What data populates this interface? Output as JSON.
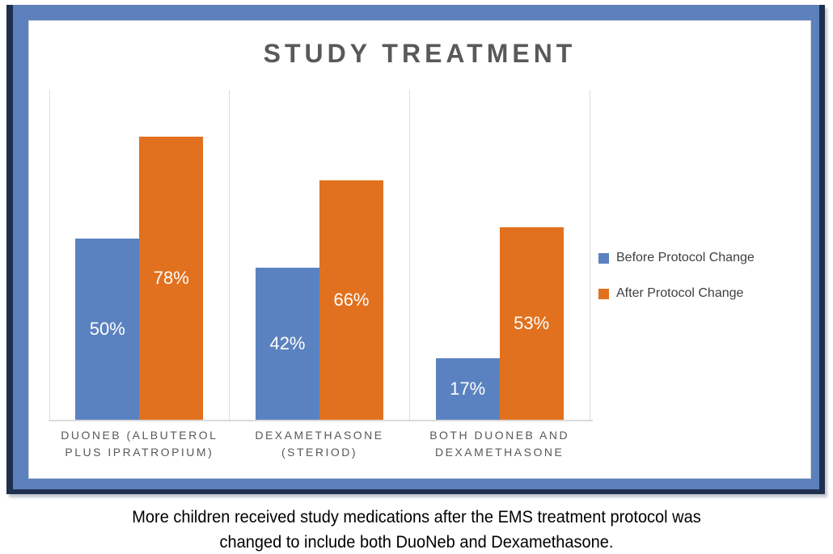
{
  "chart_data": {
    "type": "bar",
    "title": "STUDY TREATMENT",
    "categories": [
      "DUONEB (ALBUTEROL PLUS IPRATROPIUM)",
      "DEXAMETHASONE (STERIOD)",
      "BOTH DUONEB AND DEXAMETHASONE"
    ],
    "categories_lines": [
      [
        "DUONEB (ALBUTEROL",
        "PLUS IPRATROPIUM)"
      ],
      [
        "DEXAMETHASONE",
        "(STERIOD)"
      ],
      [
        "BOTH DUONEB AND",
        "DEXAMETHASONE"
      ]
    ],
    "series": [
      {
        "name": "Before Protocol Change",
        "color": "#5B82C0",
        "values": [
          50,
          42,
          17
        ]
      },
      {
        "name": "After Protocol Change",
        "color": "#E1711E",
        "values": [
          78,
          66,
          53
        ]
      }
    ],
    "value_suffix": "%",
    "xlabel": "",
    "ylabel": "",
    "ylim": [
      0,
      91
    ],
    "grid": "vertical category dividers only",
    "legend_position": "right",
    "data_labels": "white, centered inside bars"
  },
  "caption": {
    "lines": [
      "More children received study medications after the EMS treatment protocol was",
      "changed to include both DuoNeb and Dexamethasone."
    ]
  },
  "colors": {
    "bar_before": "#5B82C0",
    "bar_after": "#E1711E",
    "frame_fill": "#5C81BC",
    "frame_border": "#1F2F4E",
    "inner_border": "#D0D3D9",
    "gridline": "#DBDBDB",
    "title_text": "#595959",
    "category_text": "#595959",
    "legend_text": "#3F3F3F",
    "data_label_text": "#FFFFFF",
    "caption_text": "#000000"
  }
}
